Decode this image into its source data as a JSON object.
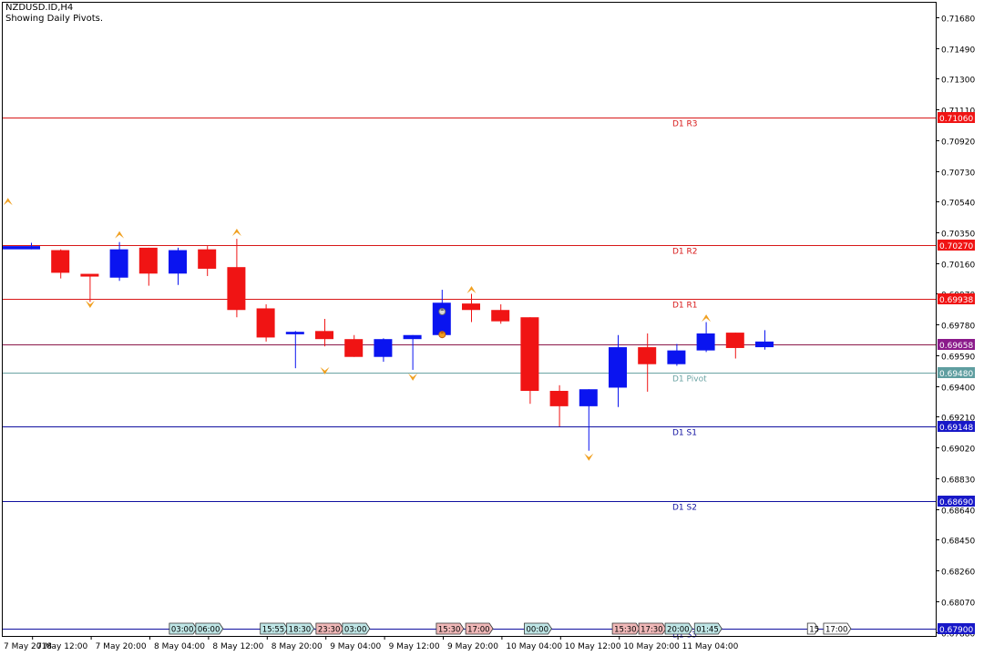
{
  "header": {
    "symbol": "NZDUSD.ID,H4",
    "subtitle": "Showing Daily Pivots."
  },
  "chart_data": {
    "type": "candlestick",
    "ylim": [
      0.67855,
      0.71775
    ],
    "price_ticks": [
      "0.71680",
      "0.71490",
      "0.71300",
      "0.71110",
      "0.70920",
      "0.70730",
      "0.70540",
      "0.70350",
      "0.70160",
      "0.69970",
      "0.69780",
      "0.69590",
      "0.69400",
      "0.69210",
      "0.69020",
      "0.68830",
      "0.68640",
      "0.68450",
      "0.68260",
      "0.68070",
      "0.67880"
    ],
    "price_tick_values": [
      0.7168,
      0.7149,
      0.713,
      0.7111,
      0.7092,
      0.7073,
      0.7054,
      0.7035,
      0.7016,
      0.6997,
      0.6978,
      0.6959,
      0.694,
      0.6921,
      0.6902,
      0.6883,
      0.6864,
      0.6845,
      0.6826,
      0.6807,
      0.6788
    ],
    "time_labels": [
      {
        "label": "7 May 2018",
        "candle": -0.8
      },
      {
        "label": "7 May 12:00",
        "candle": 1
      },
      {
        "label": "7 May 20:00",
        "candle": 3
      },
      {
        "label": "8 May 04:00",
        "candle": 5
      },
      {
        "label": "8 May 12:00",
        "candle": 7
      },
      {
        "label": "8 May 20:00",
        "candle": 9
      },
      {
        "label": "9 May 04:00",
        "candle": 11
      },
      {
        "label": "9 May 12:00",
        "candle": 13
      },
      {
        "label": "9 May 20:00",
        "candle": 15
      },
      {
        "label": "10 May 04:00",
        "candle": 17
      },
      {
        "label": "10 May 12:00",
        "candle": 19
      },
      {
        "label": "10 May 20:00",
        "candle": 21
      },
      {
        "label": "11 May 04:00",
        "candle": 23
      }
    ],
    "candles": [
      {
        "open": 0.70245,
        "high": 0.70285,
        "low": 0.70245,
        "close": 0.70265,
        "cut": true
      },
      {
        "open": 0.7024,
        "high": 0.70245,
        "low": 0.70065,
        "close": 0.701
      },
      {
        "open": 0.7009,
        "high": 0.7009,
        "low": 0.6992,
        "close": 0.7008
      },
      {
        "open": 0.7007,
        "high": 0.7029,
        "low": 0.7005,
        "close": 0.70245
      },
      {
        "open": 0.70255,
        "high": 0.70255,
        "low": 0.7002,
        "close": 0.70095
      },
      {
        "open": 0.70095,
        "high": 0.70255,
        "low": 0.70025,
        "close": 0.7024
      },
      {
        "open": 0.70245,
        "high": 0.70265,
        "low": 0.7008,
        "close": 0.70125
      },
      {
        "open": 0.70135,
        "high": 0.7031,
        "low": 0.69825,
        "close": 0.6987
      },
      {
        "open": 0.6988,
        "high": 0.69905,
        "low": 0.69675,
        "close": 0.697
      },
      {
        "open": 0.6972,
        "high": 0.6974,
        "low": 0.6951,
        "close": 0.69735
      },
      {
        "open": 0.6974,
        "high": 0.69815,
        "low": 0.69645,
        "close": 0.6969
      },
      {
        "open": 0.6969,
        "high": 0.69715,
        "low": 0.6958,
        "close": 0.6958
      },
      {
        "open": 0.6958,
        "high": 0.69695,
        "low": 0.6955,
        "close": 0.6969
      },
      {
        "open": 0.6969,
        "high": 0.69715,
        "low": 0.695,
        "close": 0.69715
      },
      {
        "open": 0.69715,
        "high": 0.69995,
        "low": 0.697,
        "close": 0.69915
      },
      {
        "open": 0.6991,
        "high": 0.6997,
        "low": 0.69795,
        "close": 0.6987
      },
      {
        "open": 0.6987,
        "high": 0.69905,
        "low": 0.69785,
        "close": 0.698
      },
      {
        "open": 0.69825,
        "high": 0.69825,
        "low": 0.6929,
        "close": 0.6937
      },
      {
        "open": 0.6937,
        "high": 0.69405,
        "low": 0.6915,
        "close": 0.69275
      },
      {
        "open": 0.69275,
        "high": 0.6938,
        "low": 0.69,
        "close": 0.6938
      },
      {
        "open": 0.6939,
        "high": 0.69715,
        "low": 0.6927,
        "close": 0.6964
      },
      {
        "open": 0.6964,
        "high": 0.69725,
        "low": 0.69365,
        "close": 0.69535
      },
      {
        "open": 0.69535,
        "high": 0.6966,
        "low": 0.69525,
        "close": 0.6962
      },
      {
        "open": 0.6962,
        "high": 0.69795,
        "low": 0.6961,
        "close": 0.69725
      },
      {
        "open": 0.6973,
        "high": 0.6973,
        "low": 0.6957,
        "close": 0.69635
      },
      {
        "open": 0.6964,
        "high": 0.69745,
        "low": 0.69625,
        "close": 0.69675
      }
    ],
    "pivots": [
      {
        "label": "D1 R3",
        "value": 0.7106,
        "value_text": "0.71060",
        "color": "#d81818",
        "badge_bg": "#f01414",
        "badge_fg": "#ffffff"
      },
      {
        "label": "D1 R2",
        "value": 0.7027,
        "value_text": "0.70270",
        "color": "#d81818",
        "badge_bg": "#f01414",
        "badge_fg": "#ffffff"
      },
      {
        "label": "D1 R1",
        "value": 0.69938,
        "value_text": "0.69938",
        "color": "#d81818",
        "badge_bg": "#f01414",
        "badge_fg": "#ffffff"
      },
      {
        "label": "D1 Pivot",
        "value": 0.6948,
        "value_text": "0.69480",
        "color": "#6aa3a3",
        "badge_bg": "#5f9ea0",
        "badge_fg": "#ffffff"
      },
      {
        "label": "D1 S1",
        "value": 0.69148,
        "value_text": "0.69148",
        "color": "#1010a0",
        "badge_bg": "#1818c8",
        "badge_fg": "#ffffff"
      },
      {
        "label": "D1 S2",
        "value": 0.6869,
        "value_text": "0.68690",
        "color": "#1010a0",
        "badge_bg": "#1818c8",
        "badge_fg": "#ffffff"
      },
      {
        "label": "D1 S3",
        "value": 0.679,
        "value_text": "0.67900",
        "color": "#1010a0",
        "badge_bg": "#1818c8",
        "badge_fg": "#ffffff"
      }
    ],
    "current_price": {
      "value": 0.69658,
      "value_text": "0.69658",
      "color": "#8b1a4a",
      "badge_bg": "#8b1a8b"
    },
    "fractals": [
      {
        "candle": -0.8,
        "kind": "up",
        "price": 0.7054
      },
      {
        "candle": 2,
        "kind": "down",
        "price": 0.69905
      },
      {
        "candle": 3,
        "kind": "up",
        "price": 0.70335
      },
      {
        "candle": 7,
        "kind": "up",
        "price": 0.7035
      },
      {
        "candle": 10,
        "kind": "down",
        "price": 0.69495
      },
      {
        "candle": 13,
        "kind": "down",
        "price": 0.69455
      },
      {
        "candle": 15,
        "kind": "up",
        "price": 0.69995
      },
      {
        "candle": 19,
        "kind": "down",
        "price": 0.6896
      },
      {
        "candle": 23,
        "kind": "up",
        "price": 0.6982
      }
    ],
    "event_icons": [
      {
        "candle": 14,
        "price": 0.6986,
        "kind": "gray"
      },
      {
        "candle": 14,
        "price": 0.69718,
        "kind": "orange"
      }
    ],
    "session_tags": [
      {
        "text": "03:00",
        "candle": 5.4,
        "tone": "teal"
      },
      {
        "text": "06:00",
        "candle": 6.3,
        "tone": "teal"
      },
      {
        "text": "15:55",
        "candle": 8.5,
        "tone": "teal"
      },
      {
        "text": "18:30",
        "candle": 9.4,
        "tone": "teal"
      },
      {
        "text": "23:30",
        "candle": 10.4,
        "tone": "pink"
      },
      {
        "text": "03:00",
        "candle": 11.3,
        "tone": "teal"
      },
      {
        "text": "15:30",
        "candle": 14.5,
        "tone": "pink"
      },
      {
        "text": "17:00",
        "candle": 15.5,
        "tone": "pink"
      },
      {
        "text": "00:00",
        "candle": 17.5,
        "tone": "teal"
      },
      {
        "text": "15:30",
        "candle": 20.5,
        "tone": "pink"
      },
      {
        "text": "17:30",
        "candle": 21.4,
        "tone": "pink"
      },
      {
        "text": "20:00",
        "candle": 22.3,
        "tone": "teal"
      },
      {
        "text": "01:45",
        "candle": 23.3,
        "tone": "teal"
      },
      {
        "text": "15",
        "candle": 27.15,
        "tone": "white"
      },
      {
        "text": "17:00",
        "candle": 27.7,
        "tone": "white"
      }
    ],
    "colors": {
      "bull": "#0a14f0",
      "bear": "#f01414",
      "fractal": "#f0a020",
      "axis": "#000000",
      "tag_teal": "#bfe6e6",
      "tag_pink": "#f0b8b8",
      "tag_white": "#ffffff"
    }
  }
}
